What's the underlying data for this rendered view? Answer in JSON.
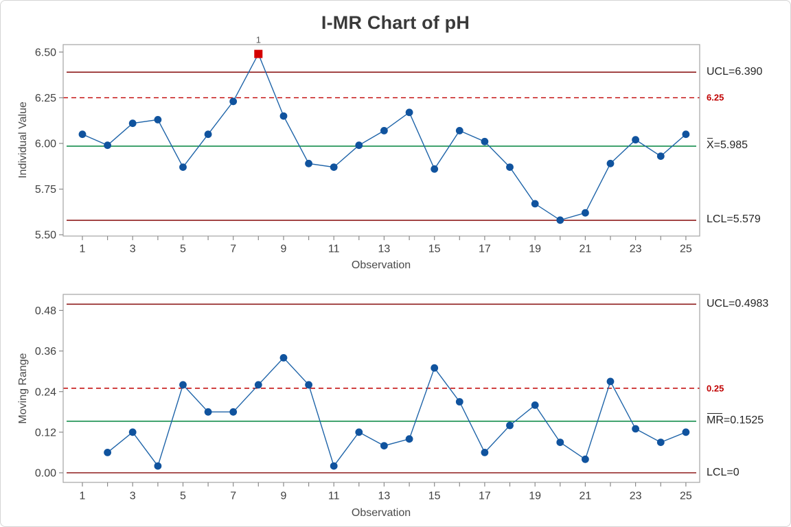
{
  "title": "I-MR Chart of pH",
  "colors": {
    "point_blue": "#10539E",
    "line_blue": "#1D63A8",
    "center_green": "#00843D",
    "limit_dark_red": "#8E1B1B",
    "spec_red": "#C00000",
    "ooc_red": "#D40000",
    "frame_gray": "#A3A3A3",
    "tick_gray": "#8A8A8A",
    "tick_text": "#404040",
    "flag_text": "#595959"
  },
  "chart_data": [
    {
      "type": "line",
      "name": "individuals-chart",
      "ylabel": "Individual Value",
      "xlabel": "Observation",
      "x_range": [
        1,
        25
      ],
      "x": [
        1,
        2,
        3,
        4,
        5,
        6,
        7,
        8,
        9,
        10,
        11,
        12,
        13,
        14,
        15,
        16,
        17,
        18,
        19,
        20,
        21,
        22,
        23,
        24,
        25
      ],
      "values": [
        6.05,
        5.99,
        6.11,
        6.13,
        5.87,
        6.05,
        6.23,
        6.49,
        6.15,
        5.89,
        5.87,
        5.99,
        6.07,
        6.17,
        5.86,
        6.07,
        6.01,
        5.87,
        5.67,
        5.58,
        5.62,
        5.89,
        6.02,
        5.93,
        6.05
      ],
      "center_line": 5.985,
      "ucl": 6.39,
      "lcl": 5.579,
      "spec_line": 6.25,
      "ylim": [
        5.49,
        6.54
      ],
      "yticks": [
        5.5,
        5.75,
        6.0,
        6.25,
        6.5
      ],
      "ytick_labels": [
        "5.50",
        "5.75",
        "6.00",
        "6.25",
        "6.50"
      ],
      "xticks": [
        1,
        3,
        5,
        7,
        9,
        11,
        13,
        15,
        17,
        19,
        21,
        23,
        25
      ],
      "xtick_labels": [
        "1",
        "3",
        "5",
        "7",
        "9",
        "11",
        "13",
        "15",
        "17",
        "19",
        "21",
        "23",
        "25"
      ],
      "flags": [
        {
          "x": 8,
          "label": "1"
        }
      ],
      "legend": "none",
      "grid": "off",
      "right_labels": [
        {
          "text": "UCL=6.390",
          "style": "dark"
        },
        {
          "text": "6.25",
          "style": "red"
        },
        {
          "bar": "X",
          "rest": "=5.985",
          "style": "dark"
        },
        {
          "text": "LCL=5.579",
          "style": "dark"
        }
      ]
    },
    {
      "type": "line",
      "name": "moving-range-chart",
      "ylabel": "Moving Range",
      "xlabel": "Observation",
      "x_range": [
        1,
        25
      ],
      "x": [
        2,
        3,
        4,
        5,
        6,
        7,
        8,
        9,
        10,
        11,
        12,
        13,
        14,
        15,
        16,
        17,
        18,
        19,
        20,
        21,
        22,
        23,
        24,
        25
      ],
      "values": [
        0.06,
        0.12,
        0.02,
        0.26,
        0.18,
        0.18,
        0.26,
        0.34,
        0.26,
        0.02,
        0.12,
        0.08,
        0.1,
        0.31,
        0.21,
        0.06,
        0.14,
        0.2,
        0.09,
        0.04,
        0.27,
        0.13,
        0.09,
        0.12
      ],
      "center_line": 0.1525,
      "ucl": 0.4983,
      "lcl": 0,
      "spec_line": 0.25,
      "ylim": [
        -0.03,
        0.53
      ],
      "yticks": [
        0.0,
        0.12,
        0.24,
        0.36,
        0.48
      ],
      "ytick_labels": [
        "0.00",
        "0.12",
        "0.24",
        "0.36",
        "0.48"
      ],
      "xticks": [
        1,
        3,
        5,
        7,
        9,
        11,
        13,
        15,
        17,
        19,
        21,
        23,
        25
      ],
      "xtick_labels": [
        "1",
        "3",
        "5",
        "7",
        "9",
        "11",
        "13",
        "15",
        "17",
        "19",
        "21",
        "23",
        "25"
      ],
      "flags": [],
      "legend": "none",
      "grid": "off",
      "right_labels": [
        {
          "text": "UCL=0.4983",
          "style": "dark"
        },
        {
          "text": "0.25",
          "style": "red"
        },
        {
          "bar": "MR",
          "rest": "=0.1525",
          "style": "dark"
        },
        {
          "text": "LCL=0",
          "style": "dark"
        }
      ]
    }
  ]
}
